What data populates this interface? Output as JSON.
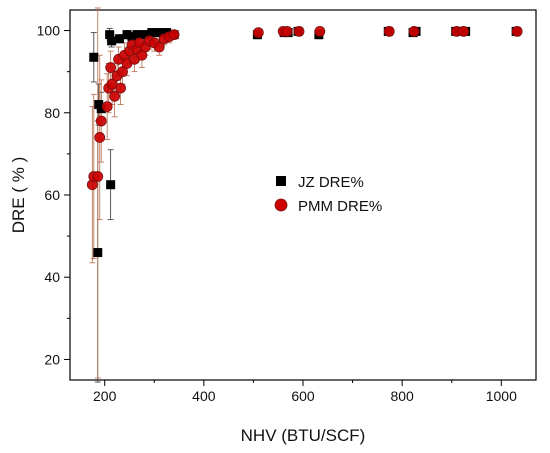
{
  "chart_data": {
    "type": "scatter",
    "xlabel": "NHV (BTU/SCF)",
    "ylabel": "DRE ( % )",
    "xlim": [
      130,
      1070
    ],
    "ylim": [
      15,
      105
    ],
    "x_ticks": [
      "200",
      "400",
      "600",
      "800",
      "1000"
    ],
    "y_ticks": [
      "20",
      "40",
      "60",
      "80",
      "100"
    ],
    "legend_position": "center-right",
    "series": [
      {
        "name": "JZ DRE%",
        "marker": "square",
        "color": "#000000",
        "points": [
          {
            "x": 178,
            "y": 93.5,
            "err": 6
          },
          {
            "x": 186,
            "y": 46,
            "err": 32
          },
          {
            "x": 188,
            "y": 82,
            "err": 5
          },
          {
            "x": 193,
            "y": 81,
            "err": 4
          },
          {
            "x": 210,
            "y": 99,
            "err": 1.5
          },
          {
            "x": 212,
            "y": 62.5,
            "err": 8.5
          },
          {
            "x": 214,
            "y": 97.5,
            "err": 1.5
          },
          {
            "x": 230,
            "y": 98,
            "err": 1
          },
          {
            "x": 245,
            "y": 99,
            "err": 1
          },
          {
            "x": 255,
            "y": 98.5,
            "err": 1
          },
          {
            "x": 265,
            "y": 99,
            "err": 1
          },
          {
            "x": 280,
            "y": 99,
            "err": 1
          },
          {
            "x": 295,
            "y": 99.5,
            "err": 1
          },
          {
            "x": 310,
            "y": 99.5,
            "err": 1
          },
          {
            "x": 325,
            "y": 99.5,
            "err": 1
          },
          {
            "x": 340,
            "y": 99,
            "err": 1
          },
          {
            "x": 508,
            "y": 99,
            "err": 1
          },
          {
            "x": 562,
            "y": 99.5,
            "err": 0.5
          },
          {
            "x": 570,
            "y": 99.5,
            "err": 0.5
          },
          {
            "x": 590,
            "y": 99.8,
            "err": 0.5
          },
          {
            "x": 632,
            "y": 99,
            "err": 1
          },
          {
            "x": 772,
            "y": 99.8,
            "err": 0.5
          },
          {
            "x": 822,
            "y": 99.5,
            "err": 0.5
          },
          {
            "x": 828,
            "y": 99.8,
            "err": 0.5
          },
          {
            "x": 908,
            "y": 99.8,
            "err": 0.5
          },
          {
            "x": 920,
            "y": 99.8,
            "err": 0.5
          },
          {
            "x": 928,
            "y": 99.8,
            "err": 0.5
          },
          {
            "x": 1030,
            "y": 99.8,
            "err": 0.5
          }
        ]
      },
      {
        "name": "PMM DRE%",
        "marker": "circle",
        "color": "#cc0000",
        "points": [
          {
            "x": 175,
            "y": 62.5,
            "err": 19
          },
          {
            "x": 178,
            "y": 64.5,
            "err": 20
          },
          {
            "x": 186,
            "y": 64.5,
            "err": 49
          },
          {
            "x": 190,
            "y": 74,
            "err": 20
          },
          {
            "x": 193,
            "y": 78,
            "err": 10
          },
          {
            "x": 205,
            "y": 81.5,
            "err": 8
          },
          {
            "x": 208,
            "y": 86,
            "err": 6
          },
          {
            "x": 212,
            "y": 91,
            "err": 4
          },
          {
            "x": 215,
            "y": 87,
            "err": 5
          },
          {
            "x": 220,
            "y": 84,
            "err": 5
          },
          {
            "x": 225,
            "y": 89,
            "err": 4
          },
          {
            "x": 228,
            "y": 93,
            "err": 3
          },
          {
            "x": 232,
            "y": 86,
            "err": 4
          },
          {
            "x": 236,
            "y": 90,
            "err": 3
          },
          {
            "x": 240,
            "y": 94,
            "err": 3
          },
          {
            "x": 245,
            "y": 92,
            "err": 3
          },
          {
            "x": 250,
            "y": 95,
            "err": 3
          },
          {
            "x": 255,
            "y": 96.5,
            "err": 2
          },
          {
            "x": 260,
            "y": 93,
            "err": 3
          },
          {
            "x": 265,
            "y": 95.5,
            "err": 2
          },
          {
            "x": 270,
            "y": 97,
            "err": 2
          },
          {
            "x": 275,
            "y": 94,
            "err": 3
          },
          {
            "x": 282,
            "y": 96,
            "err": 2
          },
          {
            "x": 290,
            "y": 97.5,
            "err": 2
          },
          {
            "x": 300,
            "y": 97,
            "err": 2
          },
          {
            "x": 310,
            "y": 96,
            "err": 2
          },
          {
            "x": 320,
            "y": 98,
            "err": 1.5
          },
          {
            "x": 330,
            "y": 98.5,
            "err": 1.5
          },
          {
            "x": 340,
            "y": 99,
            "err": 1
          },
          {
            "x": 510,
            "y": 99.5,
            "err": 1
          },
          {
            "x": 560,
            "y": 99.8,
            "err": 0.5
          },
          {
            "x": 568,
            "y": 99.8,
            "err": 0.5
          },
          {
            "x": 592,
            "y": 99.8,
            "err": 0.5
          },
          {
            "x": 634,
            "y": 99.8,
            "err": 0.5
          },
          {
            "x": 774,
            "y": 99.8,
            "err": 0.5
          },
          {
            "x": 824,
            "y": 99.8,
            "err": 0.5
          },
          {
            "x": 910,
            "y": 99.8,
            "err": 0.5
          },
          {
            "x": 924,
            "y": 99.8,
            "err": 0.5
          },
          {
            "x": 1032,
            "y": 99.8,
            "err": 0.5
          }
        ]
      }
    ]
  }
}
